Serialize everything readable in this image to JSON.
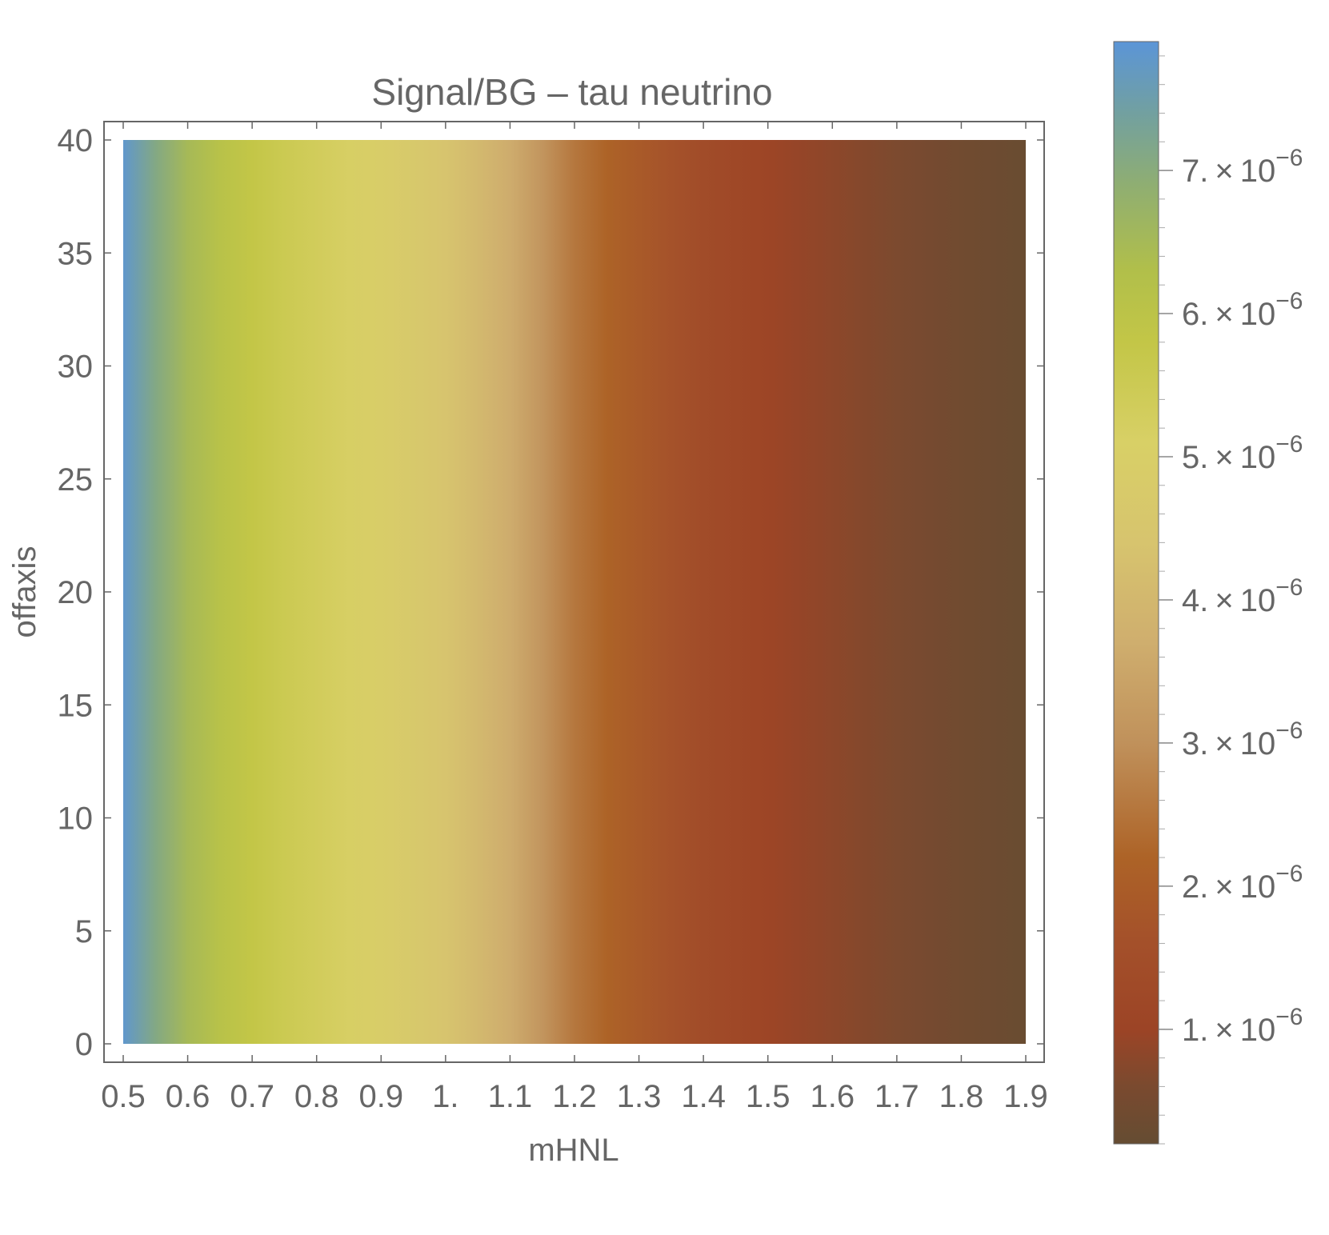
{
  "chart_data": {
    "type": "heatmap",
    "title": "Signal/BG – tau neutrino",
    "xlabel": "mHNL",
    "ylabel": "offaxis",
    "xlim": [
      0.5,
      1.9
    ],
    "ylim": [
      0,
      40
    ],
    "x_ticks": [
      {
        "value": 0.5,
        "label": "0.5"
      },
      {
        "value": 0.6,
        "label": "0.6"
      },
      {
        "value": 0.7,
        "label": "0.7"
      },
      {
        "value": 0.8,
        "label": "0.8"
      },
      {
        "value": 0.9,
        "label": "0.9"
      },
      {
        "value": 1.0,
        "label": "1."
      },
      {
        "value": 1.1,
        "label": "1.1"
      },
      {
        "value": 1.2,
        "label": "1.2"
      },
      {
        "value": 1.3,
        "label": "1.3"
      },
      {
        "value": 1.4,
        "label": "1.4"
      },
      {
        "value": 1.5,
        "label": "1.5"
      },
      {
        "value": 1.6,
        "label": "1.6"
      },
      {
        "value": 1.7,
        "label": "1.7"
      },
      {
        "value": 1.8,
        "label": "1.8"
      },
      {
        "value": 1.9,
        "label": "1.9"
      }
    ],
    "y_ticks": [
      {
        "value": 0,
        "label": "0"
      },
      {
        "value": 5,
        "label": "5"
      },
      {
        "value": 10,
        "label": "10"
      },
      {
        "value": 15,
        "label": "15"
      },
      {
        "value": 20,
        "label": "20"
      },
      {
        "value": 25,
        "label": "25"
      },
      {
        "value": 30,
        "label": "30"
      },
      {
        "value": 35,
        "label": "35"
      },
      {
        "value": 40,
        "label": "40"
      }
    ],
    "x": [
      0.5,
      0.55,
      0.6,
      0.65,
      0.7,
      0.75,
      0.8,
      0.85,
      0.9,
      0.95,
      1.0,
      1.05,
      1.1,
      1.15,
      1.2,
      1.25,
      1.3,
      1.35,
      1.4,
      1.45,
      1.5,
      1.55,
      1.6,
      1.65,
      1.7,
      1.75,
      1.8,
      1.85,
      1.9
    ],
    "values_along_x": [
      7.8e-06,
      7.1e-06,
      6.5e-06,
      6.1e-06,
      5.8e-06,
      5.55e-06,
      5.35e-06,
      5.15e-06,
      4.95e-06,
      4.7e-06,
      4.4e-06,
      4.05e-06,
      3.65e-06,
      3.1e-06,
      2.55e-06,
      2.2e-06,
      1.9e-06,
      1.65e-06,
      1.4e-06,
      1.2e-06,
      1.05e-06,
      9.2e-07,
      8.2e-07,
      7.2e-07,
      6.2e-07,
      5.2e-07,
      4.3e-07,
      3.5e-07,
      2.8e-07
    ],
    "value_constant_along_y": true,
    "colorbar": {
      "min": 2e-07,
      "max": 7.9e-06,
      "ticks": [
        {
          "value": 1e-06,
          "mantissa": "1.",
          "exponent": "-6"
        },
        {
          "value": 2e-06,
          "mantissa": "2.",
          "exponent": "-6"
        },
        {
          "value": 3e-06,
          "mantissa": "3.",
          "exponent": "-6"
        },
        {
          "value": 4e-06,
          "mantissa": "4.",
          "exponent": "-6"
        },
        {
          "value": 5e-06,
          "mantissa": "5.",
          "exponent": "-6"
        },
        {
          "value": 6e-06,
          "mantissa": "6.",
          "exponent": "-6"
        },
        {
          "value": 7e-06,
          "mantissa": "7.",
          "exponent": "-6"
        }
      ],
      "minor_step": 2e-07,
      "gradient": [
        {
          "value": 2e-07,
          "color": "#654c32"
        },
        {
          "value": 6e-07,
          "color": "#7a4a2f"
        },
        {
          "value": 1e-06,
          "color": "#9c4426"
        },
        {
          "value": 1.6e-06,
          "color": "#a4502a"
        },
        {
          "value": 2.2e-06,
          "color": "#ad6327"
        },
        {
          "value": 3e-06,
          "color": "#c0915b"
        },
        {
          "value": 3.7e-06,
          "color": "#cfae6e"
        },
        {
          "value": 4.4e-06,
          "color": "#d7c46e"
        },
        {
          "value": 5.1e-06,
          "color": "#d8d066"
        },
        {
          "value": 5.8e-06,
          "color": "#c3c647"
        },
        {
          "value": 6.3e-06,
          "color": "#b1bf4a"
        },
        {
          "value": 6.9e-06,
          "color": "#8fae72"
        },
        {
          "value": 7.4e-06,
          "color": "#72a0a0"
        },
        {
          "value": 7.9e-06,
          "color": "#5b95d7"
        }
      ]
    },
    "grid": false,
    "legend": "right-colorbar"
  }
}
